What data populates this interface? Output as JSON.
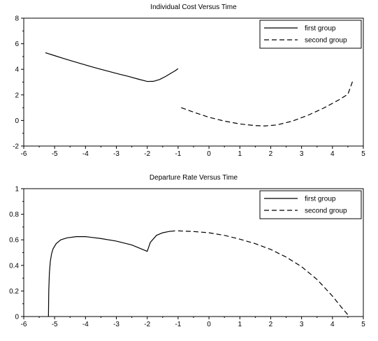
{
  "chart_data": [
    {
      "type": "line",
      "title": "Individual Cost Versus Time",
      "xlabel": "",
      "ylabel": "",
      "xlim": [
        -6,
        5
      ],
      "ylim": [
        -2,
        8
      ],
      "xticks": [
        -6,
        -5,
        -4,
        -3,
        -2,
        -1,
        0,
        1,
        2,
        3,
        4,
        5
      ],
      "yticks": [
        -2,
        0,
        2,
        4,
        6,
        8
      ],
      "grid": false,
      "legend_position": "top-right",
      "series": [
        {
          "name": "first group",
          "style": "solid",
          "x": [
            -5.3,
            -5.0,
            -4.7,
            -4.4,
            -4.1,
            -3.8,
            -3.5,
            -3.2,
            -2.9,
            -2.6,
            -2.3,
            -2.0,
            -1.8,
            -1.6,
            -1.4,
            -1.25,
            -1.1,
            -1.0
          ],
          "y": [
            5.3,
            5.07,
            4.84,
            4.62,
            4.41,
            4.2,
            4.0,
            3.81,
            3.62,
            3.44,
            3.24,
            3.05,
            3.06,
            3.2,
            3.45,
            3.67,
            3.88,
            4.05
          ]
        },
        {
          "name": "second group",
          "style": "dashed",
          "x": [
            -0.9,
            -0.5,
            0.0,
            0.5,
            1.0,
            1.5,
            1.8,
            2.2,
            2.7,
            3.2,
            3.7,
            4.2,
            4.5,
            4.65
          ],
          "y": [
            1.0,
            0.65,
            0.25,
            -0.05,
            -0.27,
            -0.4,
            -0.43,
            -0.35,
            -0.05,
            0.4,
            0.95,
            1.6,
            2.05,
            3.05
          ]
        }
      ]
    },
    {
      "type": "line",
      "title": "Departure Rate Versus Time",
      "xlabel": "",
      "ylabel": "",
      "xlim": [
        -6,
        5
      ],
      "ylim": [
        0,
        1
      ],
      "xticks": [
        -6,
        -5,
        -4,
        -3,
        -2,
        -1,
        0,
        1,
        2,
        3,
        4,
        5
      ],
      "yticks": [
        0,
        0.2,
        0.4,
        0.6,
        0.8,
        1
      ],
      "grid": false,
      "legend_position": "top-right",
      "series": [
        {
          "name": "first group",
          "style": "solid",
          "x": [
            -5.2,
            -5.19,
            -5.17,
            -5.14,
            -5.1,
            -5.05,
            -4.95,
            -4.8,
            -4.6,
            -4.3,
            -4.0,
            -3.5,
            -3.0,
            -2.5,
            -2.0,
            -1.9,
            -1.7,
            -1.5,
            -1.3,
            -1.1
          ],
          "y": [
            0.0,
            0.2,
            0.34,
            0.43,
            0.49,
            0.53,
            0.57,
            0.6,
            0.615,
            0.625,
            0.625,
            0.61,
            0.59,
            0.56,
            0.51,
            0.58,
            0.635,
            0.655,
            0.665,
            0.67
          ]
        },
        {
          "name": "second group",
          "style": "dashed",
          "x": [
            -1.0,
            -0.5,
            0.0,
            0.5,
            1.0,
            1.5,
            2.0,
            2.5,
            3.0,
            3.5,
            4.0,
            4.3,
            4.55
          ],
          "y": [
            0.67,
            0.665,
            0.655,
            0.635,
            0.605,
            0.57,
            0.525,
            0.465,
            0.39,
            0.29,
            0.16,
            0.07,
            0.0
          ]
        }
      ]
    }
  ]
}
